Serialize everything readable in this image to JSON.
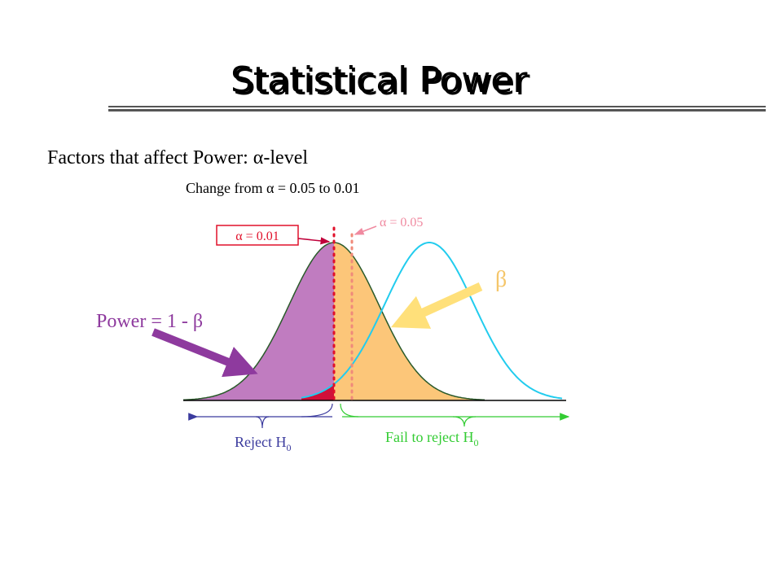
{
  "title": "Statistical Power",
  "heading": "Factors that affect Power:  α-level",
  "subheading": "Change from α = 0.05 to 0.01",
  "labels": {
    "alpha_01": "α = 0.01",
    "alpha_05": "α = 0.05",
    "beta": "β",
    "power": "Power = 1 - β",
    "reject": {
      "text": "Reject H",
      "subscript": "0"
    },
    "fail": {
      "text": "Fail to reject H",
      "subscript": "0"
    }
  }
}
